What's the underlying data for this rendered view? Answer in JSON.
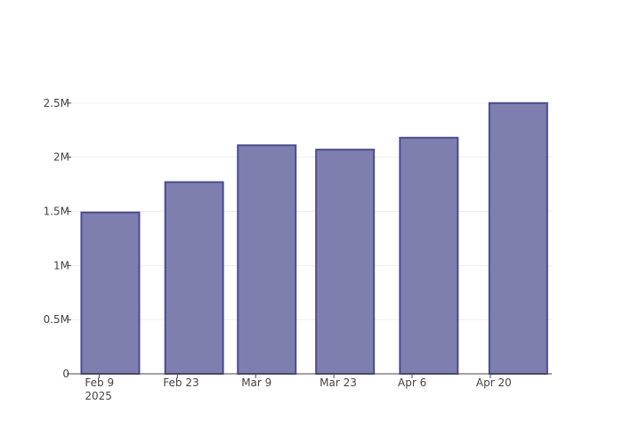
{
  "chart_data": {
    "type": "bar",
    "x": [
      "2025-02-11",
      "2025-02-26",
      "2025-03-11",
      "2025-03-25",
      "2025-04-09",
      "2025-04-25"
    ],
    "values": [
      1490000,
      1770000,
      2110000,
      2070000,
      2180000,
      2500000
    ],
    "color": "#7f7faf",
    "line_color": "#4b4b8f",
    "xlim": [
      "2025-02-04",
      "2025-05-01"
    ],
    "xticks": [
      {
        "value": "2025-02-09",
        "label": "Feb 9\n2025"
      },
      {
        "value": "2025-02-23",
        "label": "Feb 23"
      },
      {
        "value": "2025-03-09",
        "label": "Mar 9"
      },
      {
        "value": "2025-03-23",
        "label": "Mar 23"
      },
      {
        "value": "2025-04-06",
        "label": "Apr 6"
      },
      {
        "value": "2025-04-20",
        "label": "Apr 20"
      }
    ],
    "ylim": [
      0,
      2630000
    ],
    "yticks": [
      0,
      {
        "value": 500000,
        "label": "0.5M"
      },
      {
        "value": 1000000,
        "label": "1M"
      },
      {
        "value": 1500000,
        "label": "1.5M"
      },
      {
        "value": 2000000,
        "label": "2M"
      },
      {
        "value": 2500000,
        "label": "2.5M"
      }
    ],
    "grid": true
  }
}
